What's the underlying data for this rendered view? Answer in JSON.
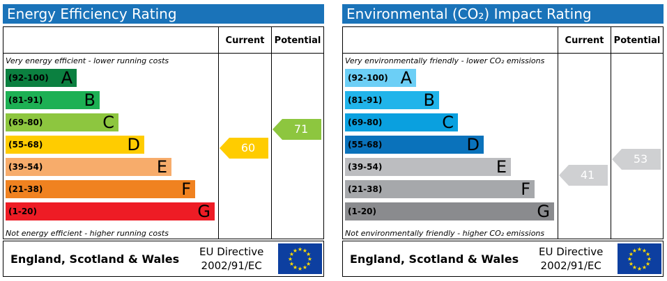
{
  "headers": {
    "current": "Current",
    "potential": "Potential"
  },
  "energy": {
    "title": "Energy Efficiency Rating",
    "top_note": "Very energy efficient - lower running costs",
    "bottom_note": "Not energy efficient - higher running costs",
    "bands": [
      {
        "range": "(92-100)",
        "letter": "A",
        "color": "#0b8040"
      },
      {
        "range": "(81-91)",
        "letter": "B",
        "color": "#1db054"
      },
      {
        "range": "(69-80)",
        "letter": "C",
        "color": "#8dc63f"
      },
      {
        "range": "(55-68)",
        "letter": "D",
        "color": "#ffcc00"
      },
      {
        "range": "(39-54)",
        "letter": "E",
        "color": "#f7ac6b"
      },
      {
        "range": "(21-38)",
        "letter": "F",
        "color": "#f08220"
      },
      {
        "range": "(1-20)",
        "letter": "G",
        "color": "#ee1c25"
      }
    ],
    "current": {
      "value": "60",
      "color": "#ffcc00"
    },
    "potential": {
      "value": "71",
      "color": "#8dc63f"
    },
    "region": "England, Scotland & Wales",
    "directive_line1": "EU Directive",
    "directive_line2": "2002/91/EC"
  },
  "environment": {
    "title": "Environmental (CO₂) Impact Rating",
    "top_note": "Very environmentally friendly - lower CO₂ emissions",
    "bottom_note": "Not environmentally friendly - higher CO₂ emissions",
    "bands": [
      {
        "range": "(92-100)",
        "letter": "A",
        "color": "#6ccff6"
      },
      {
        "range": "(81-91)",
        "letter": "B",
        "color": "#21b4ea"
      },
      {
        "range": "(69-80)",
        "letter": "C",
        "color": "#0aa0df"
      },
      {
        "range": "(55-68)",
        "letter": "D",
        "color": "#0a72bb"
      },
      {
        "range": "(39-54)",
        "letter": "E",
        "color": "#bcbdc0"
      },
      {
        "range": "(21-38)",
        "letter": "F",
        "color": "#a6a8ab"
      },
      {
        "range": "(1-20)",
        "letter": "G",
        "color": "#8a8b8e"
      }
    ],
    "current": {
      "value": "41",
      "color": "#cfd0d2"
    },
    "potential": {
      "value": "53",
      "color": "#cfd0d2"
    },
    "region": "England, Scotland & Wales",
    "directive_line1": "EU Directive",
    "directive_line2": "2002/91/EC"
  }
}
